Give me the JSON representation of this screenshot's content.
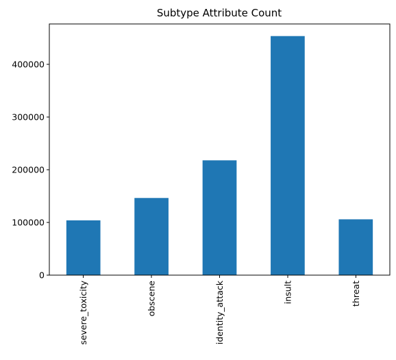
{
  "chart_data": {
    "type": "bar",
    "title": "Subtype Attribute Count",
    "xlabel": "",
    "ylabel": "",
    "categories": [
      "severe_toxicity",
      "obscene",
      "identity_attack",
      "insult",
      "threat"
    ],
    "values": [
      104000,
      146500,
      218000,
      454000,
      106000
    ],
    "ylim": [
      0,
      477000
    ],
    "yticks": [
      0,
      100000,
      200000,
      300000,
      400000
    ],
    "ytick_labels": [
      "0",
      "100000",
      "200000",
      "300000",
      "400000"
    ],
    "bar_color": "#1f77b4",
    "grid": false,
    "legend": "none"
  }
}
